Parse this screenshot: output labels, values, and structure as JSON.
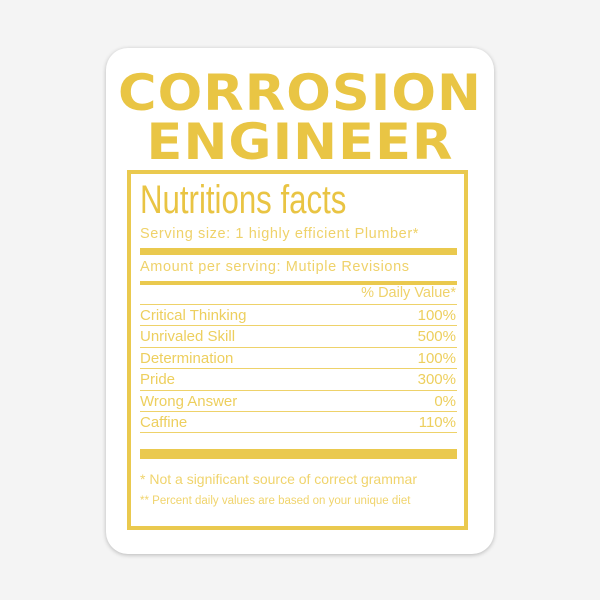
{
  "title_line1": "CORROSION",
  "title_line2": "ENGINEER",
  "label": {
    "heading": "Nutritions facts",
    "serving": "Serving size: 1 highly efficient Plumber*",
    "amount": "Amount per serving: Mutiple Revisions",
    "daily_value_header": "% Daily Value*",
    "rows": [
      {
        "name": "Critical  Thinking",
        "value": "100%"
      },
      {
        "name": "Unrivaled Skill",
        "value": "500%"
      },
      {
        "name": "Determination",
        "value": "100%"
      },
      {
        "name": "Pride",
        "value": "300%"
      },
      {
        "name": "Wrong Answer",
        "value": "0%"
      },
      {
        "name": "Caffine",
        "value": "110%"
      }
    ],
    "footnote1": "* Not a significant source of correct grammar",
    "footnote2": "** Percent daily values are based on your unique diet"
  },
  "colors": {
    "accent": "#e9c544",
    "background": "#f4f4f4",
    "sticker": "#ffffff"
  }
}
